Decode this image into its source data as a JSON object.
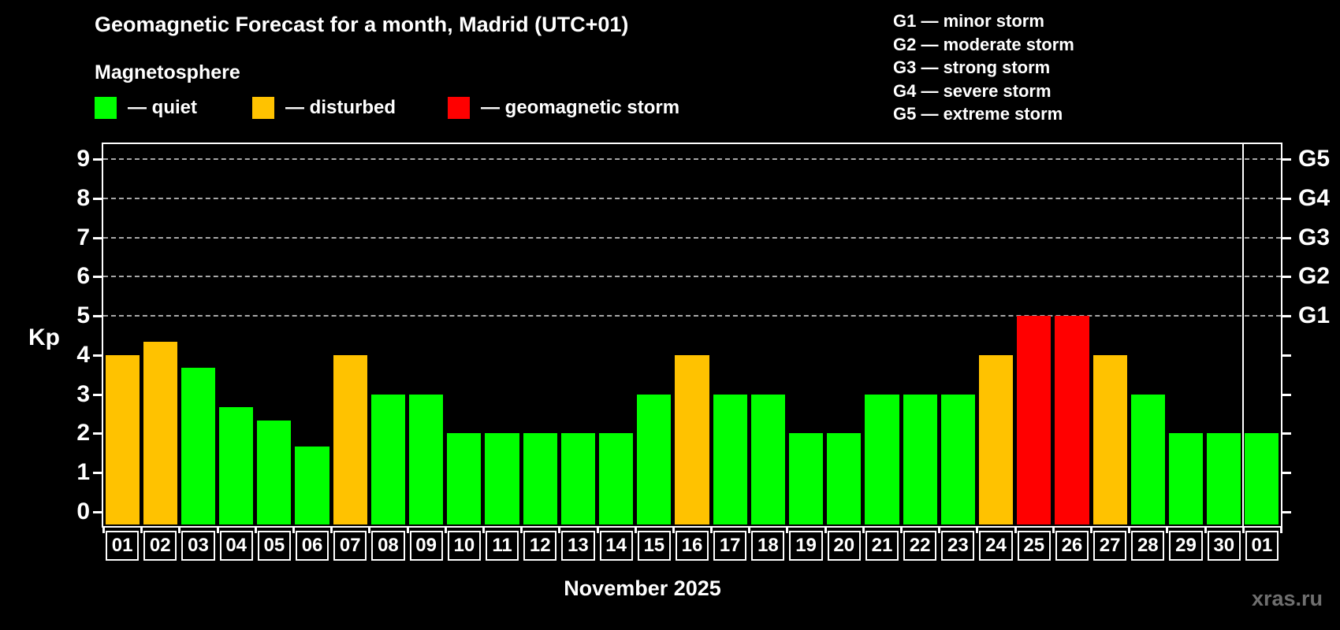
{
  "title": "Geomagnetic Forecast for a month, Madrid (UTC+01)",
  "subtitle": "Magnetosphere",
  "legend": {
    "items": [
      {
        "key": "quiet",
        "label": "— quiet",
        "color": "#00ff00"
      },
      {
        "key": "disturbed",
        "label": "— disturbed",
        "color": "#ffc200"
      },
      {
        "key": "storm",
        "label": "— geomagnetic storm",
        "color": "#ff0000"
      }
    ]
  },
  "g_scale_legend": [
    "G1 — minor storm",
    "G2 — moderate storm",
    "G3 — strong storm",
    "G4 — severe storm",
    "G5 — extreme storm"
  ],
  "axes": {
    "y_label": "Kp",
    "y_ticks": [
      0,
      1,
      2,
      3,
      4,
      5,
      6,
      7,
      8,
      9
    ],
    "right_labels": [
      {
        "value": 5,
        "label": "G1"
      },
      {
        "value": 6,
        "label": "G2"
      },
      {
        "value": 7,
        "label": "G3"
      },
      {
        "value": 8,
        "label": "G4"
      },
      {
        "value": 9,
        "label": "G5"
      }
    ],
    "x_axis_title": "November 2025"
  },
  "chart_data": {
    "type": "bar",
    "title": "Geomagnetic Forecast for a month, Madrid (UTC+01)",
    "xlabel": "November 2025",
    "ylabel": "Kp",
    "ylim": [
      0,
      9
    ],
    "gridlines_dashed_at": [
      5,
      6,
      7,
      8,
      9
    ],
    "month_boundary_after_index": 29,
    "categories": [
      "01",
      "02",
      "03",
      "04",
      "05",
      "06",
      "07",
      "08",
      "09",
      "10",
      "11",
      "12",
      "13",
      "14",
      "15",
      "16",
      "17",
      "18",
      "19",
      "20",
      "21",
      "22",
      "23",
      "24",
      "25",
      "26",
      "27",
      "28",
      "29",
      "30",
      "01"
    ],
    "values": [
      4,
      4.33,
      3.67,
      2.67,
      2.33,
      1.67,
      4,
      3,
      3,
      2,
      2,
      2,
      2,
      2,
      3,
      4,
      3,
      3,
      2,
      2,
      3,
      3,
      3,
      4,
      5,
      5,
      4,
      3,
      2,
      2,
      2
    ],
    "statuses": [
      "disturbed",
      "disturbed",
      "quiet",
      "quiet",
      "quiet",
      "quiet",
      "disturbed",
      "quiet",
      "quiet",
      "quiet",
      "quiet",
      "quiet",
      "quiet",
      "quiet",
      "quiet",
      "disturbed",
      "quiet",
      "quiet",
      "quiet",
      "quiet",
      "quiet",
      "quiet",
      "quiet",
      "disturbed",
      "storm",
      "storm",
      "disturbed",
      "quiet",
      "quiet",
      "quiet",
      "quiet"
    ]
  },
  "colors": {
    "quiet": "#00ff00",
    "disturbed": "#ffc200",
    "storm": "#ff0000",
    "background": "#000000",
    "axis": "#ffffff",
    "gridline": "#a8a8a8",
    "watermark": "#6f6f6f"
  },
  "watermark": "xras.ru"
}
